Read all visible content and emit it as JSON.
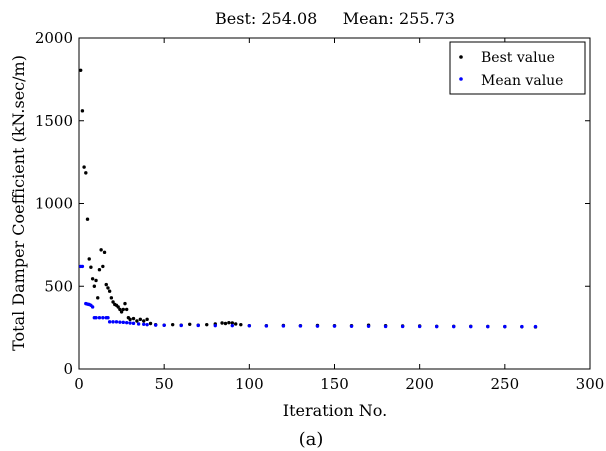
{
  "chart_data": {
    "type": "scatter",
    "title": "Best: 254.08     Mean: 255.73",
    "xlabel": "Iteration No.",
    "ylabel": "Total Damper Coefficient (kN.sec/m)",
    "caption": "(a)",
    "xlim": [
      0,
      300
    ],
    "ylim": [
      0,
      2000
    ],
    "xticks": [
      0,
      50,
      100,
      150,
      200,
      250,
      300
    ],
    "yticks": [
      0,
      500,
      1000,
      1500,
      2000
    ],
    "grid": false,
    "legend_position": "top-right",
    "series": [
      {
        "name": "Best value",
        "color": "#000000",
        "points": [
          [
            1,
            1805
          ],
          [
            2,
            1560
          ],
          [
            3,
            1220
          ],
          [
            4,
            1185
          ],
          [
            5,
            905
          ],
          [
            6,
            665
          ],
          [
            7,
            615
          ],
          [
            8,
            545
          ],
          [
            9,
            500
          ],
          [
            10,
            535
          ],
          [
            11,
            430
          ],
          [
            12,
            600
          ],
          [
            13,
            720
          ],
          [
            14,
            620
          ],
          [
            15,
            705
          ],
          [
            16,
            510
          ],
          [
            17,
            490
          ],
          [
            18,
            470
          ],
          [
            19,
            430
          ],
          [
            20,
            405
          ],
          [
            21,
            390
          ],
          [
            22,
            385
          ],
          [
            23,
            375
          ],
          [
            24,
            360
          ],
          [
            25,
            345
          ],
          [
            26,
            360
          ],
          [
            27,
            395
          ],
          [
            28,
            360
          ],
          [
            29,
            310
          ],
          [
            30,
            300
          ],
          [
            32,
            305
          ],
          [
            34,
            290
          ],
          [
            36,
            300
          ],
          [
            38,
            290
          ],
          [
            40,
            300
          ],
          [
            42,
            275
          ],
          [
            45,
            268
          ],
          [
            50,
            265
          ],
          [
            55,
            268
          ],
          [
            60,
            265
          ],
          [
            65,
            270
          ],
          [
            70,
            265
          ],
          [
            75,
            268
          ],
          [
            80,
            272
          ],
          [
            84,
            278
          ],
          [
            86,
            275
          ],
          [
            88,
            280
          ],
          [
            90,
            278
          ],
          [
            92,
            272
          ],
          [
            95,
            268
          ],
          [
            100,
            262
          ],
          [
            110,
            262
          ],
          [
            120,
            263
          ],
          [
            130,
            262
          ],
          [
            140,
            263
          ],
          [
            150,
            262
          ],
          [
            160,
            262
          ],
          [
            170,
            265
          ],
          [
            180,
            262
          ],
          [
            190,
            260
          ],
          [
            200,
            260
          ],
          [
            210,
            258
          ],
          [
            220,
            258
          ],
          [
            230,
            258
          ],
          [
            240,
            257
          ],
          [
            250,
            256
          ],
          [
            260,
            255
          ],
          [
            268,
            254
          ]
        ]
      },
      {
        "name": "Mean value",
        "color": "#0000ff",
        "points": [
          [
            1,
            620
          ],
          [
            2,
            620
          ],
          [
            4,
            395
          ],
          [
            5,
            392
          ],
          [
            6,
            390
          ],
          [
            7,
            385
          ],
          [
            8,
            375
          ],
          [
            9,
            310
          ],
          [
            10,
            310
          ],
          [
            12,
            310
          ],
          [
            14,
            310
          ],
          [
            16,
            310
          ],
          [
            17,
            310
          ],
          [
            18,
            285
          ],
          [
            20,
            285
          ],
          [
            22,
            285
          ],
          [
            24,
            283
          ],
          [
            26,
            282
          ],
          [
            28,
            280
          ],
          [
            30,
            278
          ],
          [
            32,
            276
          ],
          [
            35,
            272
          ],
          [
            38,
            270
          ],
          [
            40,
            268
          ],
          [
            45,
            265
          ],
          [
            50,
            264
          ],
          [
            60,
            263
          ],
          [
            70,
            263
          ],
          [
            80,
            262
          ],
          [
            90,
            262
          ],
          [
            100,
            261
          ],
          [
            110,
            260
          ],
          [
            120,
            260
          ],
          [
            130,
            260
          ],
          [
            140,
            259
          ],
          [
            150,
            259
          ],
          [
            160,
            258
          ],
          [
            170,
            258
          ],
          [
            180,
            257
          ],
          [
            190,
            257
          ],
          [
            200,
            257
          ],
          [
            210,
            256
          ],
          [
            220,
            256
          ],
          [
            230,
            256
          ],
          [
            240,
            256
          ],
          [
            250,
            256
          ],
          [
            260,
            256
          ],
          [
            268,
            256
          ]
        ]
      }
    ]
  }
}
